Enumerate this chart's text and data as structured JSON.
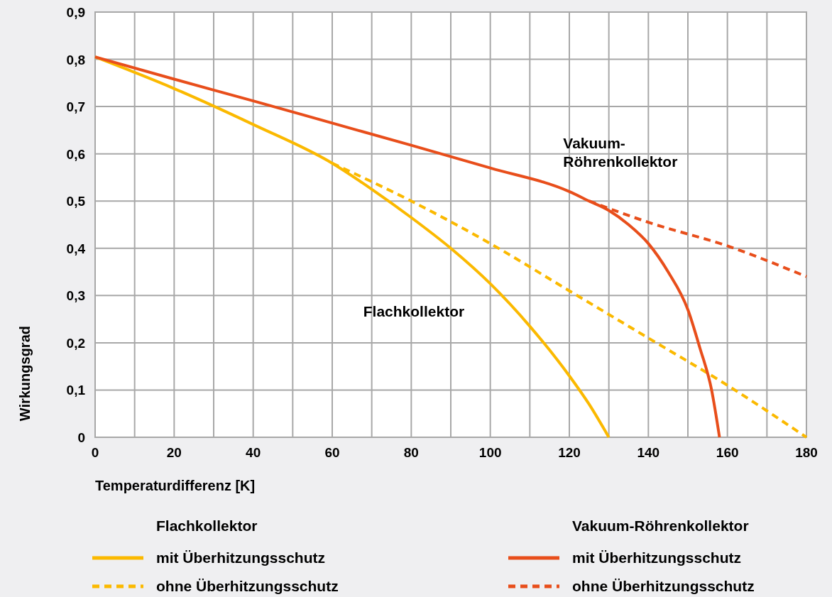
{
  "chart_data": {
    "type": "line",
    "xlabel": "Temperaturdifferenz [K]",
    "ylabel": "Wirkungsgrad",
    "xlim": [
      0,
      180
    ],
    "ylim": [
      0,
      0.9
    ],
    "xticks": [
      0,
      {
        "value": 10,
        "label": null
      },
      20,
      {
        "value": 30,
        "label": null
      },
      40,
      {
        "value": 50,
        "label": null
      },
      60,
      {
        "value": 70,
        "label": null
      },
      80,
      {
        "value": 90,
        "label": null
      },
      100,
      {
        "value": 110,
        "label": null
      },
      120,
      {
        "value": 130,
        "label": null
      },
      140,
      {
        "value": 150,
        "label": null
      },
      160,
      {
        "value": 170,
        "label": null
      },
      180
    ],
    "yticks": [
      {
        "value": 0,
        "label": "0"
      },
      {
        "value": 0.1,
        "label": "0,1"
      },
      {
        "value": 0.2,
        "label": "0,2"
      },
      {
        "value": 0.3,
        "label": "0,3"
      },
      {
        "value": 0.4,
        "label": "0,4"
      },
      {
        "value": 0.5,
        "label": "0,5"
      },
      {
        "value": 0.6,
        "label": "0,6"
      },
      {
        "value": 0.7,
        "label": "0,7"
      },
      {
        "value": 0.8,
        "label": "0,8"
      },
      {
        "value": 0.9,
        "label": "0,9"
      }
    ],
    "grid": true,
    "legend": "bottom",
    "series": [
      {
        "name": "mit Überhitzungsschutz",
        "color": "#fbb900",
        "line_style": "solid",
        "x": [
          0,
          20,
          40,
          60,
          70,
          80,
          90,
          100,
          110,
          120,
          125,
          130
        ],
        "values": [
          0.805,
          0.738,
          0.662,
          0.58,
          0.525,
          0.465,
          0.4,
          0.325,
          0.235,
          0.13,
          0.07,
          0
        ]
      },
      {
        "name": "ohne Überhitzungsschutz",
        "color": "#fbb900",
        "line_style": "dashed",
        "x": [
          60,
          80,
          100,
          120,
          140,
          160,
          180
        ],
        "values": [
          0.58,
          0.5,
          0.41,
          0.31,
          0.21,
          0.11,
          0
        ]
      },
      {
        "name": "mit Überhitzungsschutz",
        "color": "#e84e1b",
        "line_style": "solid",
        "x": [
          0,
          20,
          40,
          60,
          80,
          100,
          120,
          125,
          130,
          135,
          140,
          145,
          150,
          153,
          156,
          158
        ],
        "values": [
          0.805,
          0.758,
          0.712,
          0.665,
          0.618,
          0.57,
          0.52,
          0.5,
          0.48,
          0.45,
          0.41,
          0.35,
          0.27,
          0.19,
          0.1,
          0
        ]
      },
      {
        "name": "ohne Überhitzungsschutz",
        "color": "#e84e1b",
        "line_style": "dashed",
        "x": [
          125,
          140,
          160,
          180
        ],
        "values": [
          0.5,
          0.455,
          0.405,
          0.34
        ]
      }
    ],
    "annotations": [
      "Flachkollektor",
      "Vakuum-\nRöhrenkollektor",
      "Flachkollektor",
      "Vakuum-Röhrenkollektor"
    ]
  }
}
